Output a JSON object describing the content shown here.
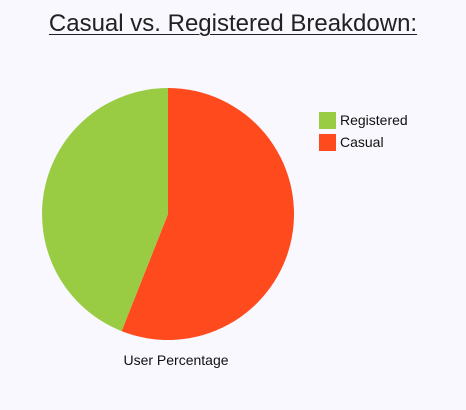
{
  "chart_data": {
    "type": "pie",
    "title": "Casual vs. Registered Breakdown:",
    "xlabel": "User Percentage",
    "slices": [
      {
        "label": "Registered",
        "value": 44,
        "color": "#9acc43"
      },
      {
        "label": "Casual",
        "value": 56,
        "color": "#ff4a1e"
      }
    ],
    "legend_position": "right"
  }
}
